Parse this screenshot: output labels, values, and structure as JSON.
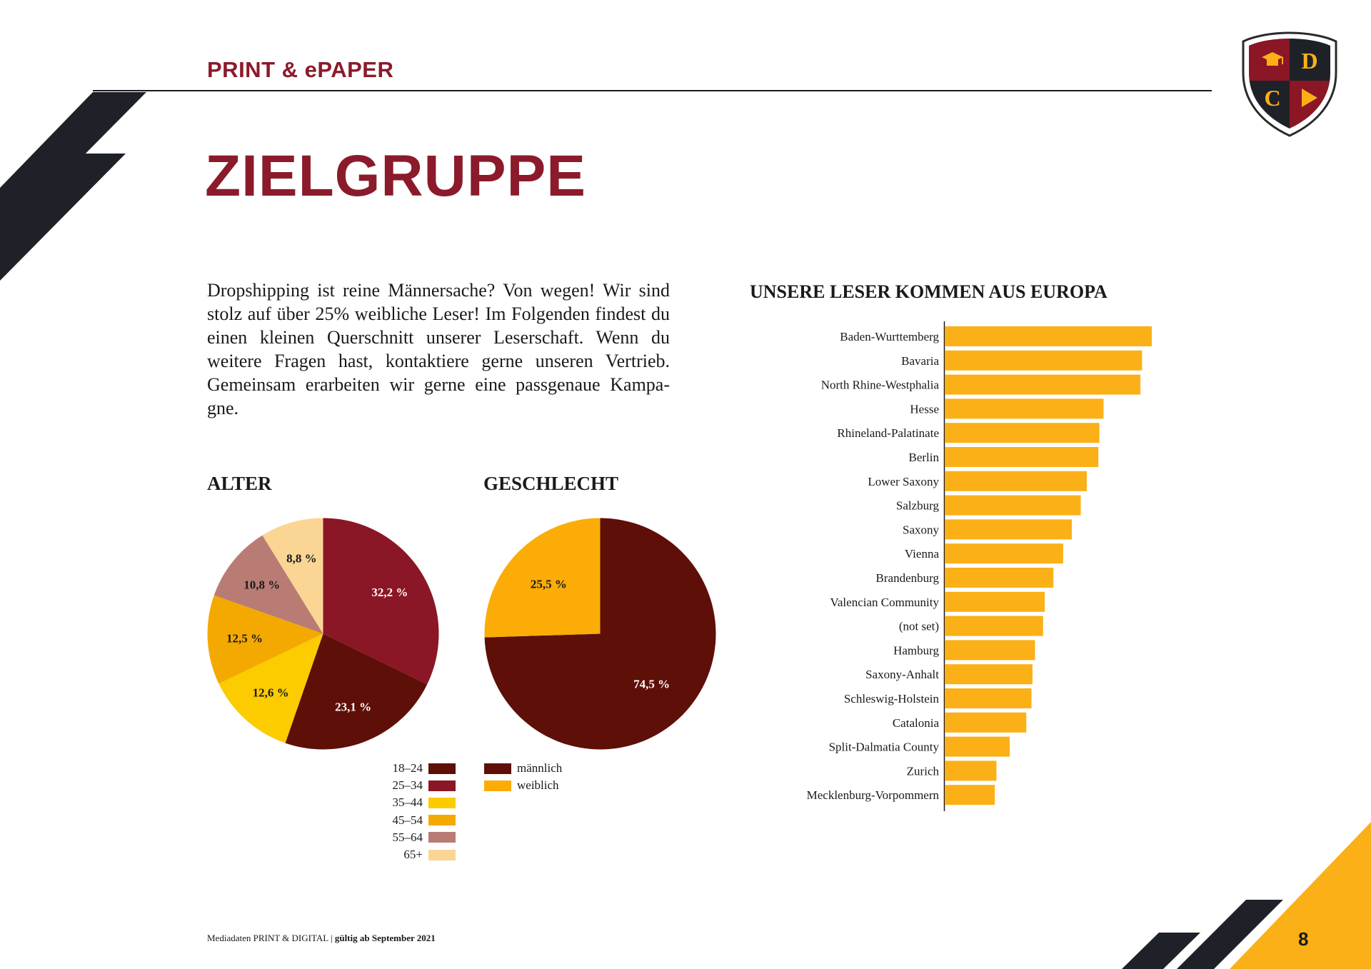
{
  "header": {
    "section_label": "PRINT & ePAPER"
  },
  "page": {
    "title": "ZIELGRUPPE",
    "number": "8"
  },
  "logo": {
    "letters": [
      "D",
      "C"
    ]
  },
  "intro_text": "Dropshipping ist reine Männersache? Von wegen! Wir sind stolz auf über 25% weibliche Leser! Im Folgenden findest du einen kleinen Querschnitt unserer Leserschaft. Wenn du weitere Fragen hast, kontaktiere gerne unseren Vertrieb. Gemeinsam erarbeiten wir gerne eine passgenaue Kampa-gne.",
  "footer": {
    "text": "Mediadaten PRINT & DIGITAL | ",
    "bold": "gültig ab September 2021"
  },
  "colors": {
    "brand_red": "#8b1a2b",
    "brand_yellow": "#fbb017",
    "dark": "#1e2127"
  },
  "chart_data": [
    {
      "type": "pie",
      "title": "ALTER",
      "categories": [
        "18–24",
        "25–34",
        "35–44",
        "45–54",
        "55–64",
        "65+"
      ],
      "values": [
        23.1,
        32.2,
        12.6,
        12.5,
        10.8,
        8.8
      ],
      "value_labels": [
        "23,1 %",
        "32,2 %",
        "12,6 %",
        "12,5 %",
        "10,8 %",
        "8,8 %"
      ],
      "colors": [
        "#5e0f08",
        "#8b1625",
        "#fccb00",
        "#f4a900",
        "#b97c74",
        "#fad594"
      ],
      "label_colors": [
        "#ffffff",
        "#ffffff",
        "#1a1a1a",
        "#1a1a1a",
        "#1a1a1a",
        "#1a1a1a"
      ],
      "legend_placement": "bottom"
    },
    {
      "type": "pie",
      "title": "GESCHLECHT",
      "categories": [
        "männlich",
        "weiblich"
      ],
      "values": [
        74.5,
        25.5
      ],
      "value_labels": [
        "74,5 %",
        "25,5 %"
      ],
      "colors": [
        "#5e0f08",
        "#fbac07"
      ],
      "label_colors": [
        "#ffffff",
        "#1a1a1a"
      ],
      "legend_placement": "bottom"
    },
    {
      "type": "bar",
      "orientation": "horizontal",
      "title": "UNSERE LESER KOMMEN AUS EUROPA",
      "categories": [
        "Baden-Wurttemberg",
        "Bavaria",
        "North Rhine-Westphalia",
        "Hesse",
        "Rhineland-Palatinate",
        "Berlin",
        "Lower Saxony",
        "Salzburg",
        "Saxony",
        "Vienna",
        "Brandenburg",
        "Valencian Community",
        "(not set)",
        "Hamburg",
        "Saxony-Anhalt",
        "Schleswig-Holstein",
        "Catalonia",
        "Split-Dalmatia County",
        "Zurich",
        "Mecklenburg-Vorpommern"
      ],
      "values": [
        100,
        95.3,
        94.5,
        76.7,
        74.7,
        74.2,
        68.6,
        65.7,
        61.4,
        57.2,
        52.5,
        48.3,
        47.5,
        43.6,
        42.4,
        41.9,
        39.4,
        31.4,
        25.0,
        24.2
      ],
      "color": "#fbb017",
      "grid": false
    }
  ]
}
